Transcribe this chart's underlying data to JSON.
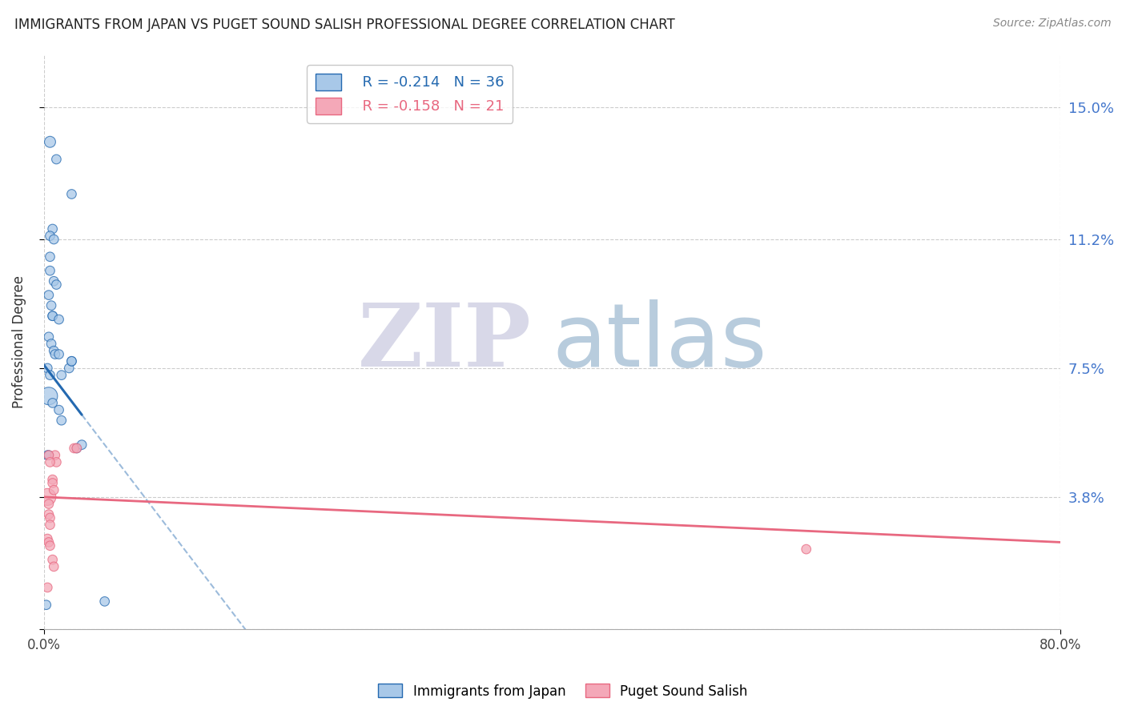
{
  "title": "IMMIGRANTS FROM JAPAN VS PUGET SOUND SALISH PROFESSIONAL DEGREE CORRELATION CHART",
  "source": "Source: ZipAtlas.com",
  "ylabel": "Professional Degree",
  "xlim": [
    0,
    0.8
  ],
  "ylim": [
    0,
    0.165
  ],
  "yticks": [
    0.0,
    0.038,
    0.075,
    0.112,
    0.15
  ],
  "ytick_labels": [
    "",
    "3.8%",
    "7.5%",
    "11.2%",
    "15.0%"
  ],
  "legend_r": [
    -0.214,
    -0.158
  ],
  "legend_n": [
    36,
    21
  ],
  "blue_color": "#a8c8e8",
  "pink_color": "#f4a8b8",
  "blue_line_color": "#2469b0",
  "pink_line_color": "#e86880",
  "blue_scatter": {
    "x": [
      0.005,
      0.01,
      0.022,
      0.007,
      0.005,
      0.008,
      0.005,
      0.005,
      0.008,
      0.01,
      0.004,
      0.006,
      0.007,
      0.007,
      0.012,
      0.004,
      0.006,
      0.008,
      0.009,
      0.012,
      0.003,
      0.005,
      0.014,
      0.02,
      0.022,
      0.022,
      0.004,
      0.007,
      0.012,
      0.014,
      0.003,
      0.004,
      0.026,
      0.03,
      0.048,
      0.002
    ],
    "y": [
      0.14,
      0.135,
      0.125,
      0.115,
      0.113,
      0.112,
      0.107,
      0.103,
      0.1,
      0.099,
      0.096,
      0.093,
      0.09,
      0.09,
      0.089,
      0.084,
      0.082,
      0.08,
      0.079,
      0.079,
      0.075,
      0.073,
      0.073,
      0.075,
      0.077,
      0.077,
      0.067,
      0.065,
      0.063,
      0.06,
      0.05,
      0.05,
      0.052,
      0.053,
      0.008,
      0.007
    ],
    "sizes": [
      100,
      70,
      70,
      70,
      70,
      70,
      70,
      70,
      70,
      70,
      70,
      70,
      70,
      70,
      70,
      70,
      70,
      70,
      70,
      70,
      70,
      70,
      70,
      70,
      70,
      70,
      250,
      70,
      70,
      70,
      70,
      70,
      70,
      70,
      70,
      70
    ]
  },
  "pink_scatter": {
    "x": [
      0.003,
      0.004,
      0.004,
      0.005,
      0.005,
      0.007,
      0.007,
      0.008,
      0.009,
      0.01,
      0.003,
      0.004,
      0.005,
      0.007,
      0.008,
      0.004,
      0.005,
      0.024,
      0.026,
      0.6,
      0.003
    ],
    "y": [
      0.038,
      0.036,
      0.033,
      0.032,
      0.03,
      0.043,
      0.042,
      0.04,
      0.05,
      0.048,
      0.026,
      0.025,
      0.024,
      0.02,
      0.018,
      0.05,
      0.048,
      0.052,
      0.052,
      0.023,
      0.012
    ],
    "sizes": [
      230,
      70,
      70,
      70,
      70,
      70,
      70,
      70,
      70,
      70,
      70,
      70,
      70,
      70,
      70,
      70,
      70,
      70,
      70,
      70,
      70
    ]
  },
  "blue_line": {
    "x0": 0.0,
    "y0": 0.076,
    "x1": 0.048,
    "y1": 0.053,
    "solid_end": 0.03,
    "dash_end": 0.6
  },
  "pink_line": {
    "x0": 0.0,
    "y0": 0.038,
    "x1": 0.8,
    "y1": 0.025,
    "solid_end": 0.8
  },
  "background_color": "#ffffff",
  "grid_color": "#cccccc",
  "watermark_zip": "ZIP",
  "watermark_atlas": "atlas",
  "watermark_color_zip": "#d8d8e8",
  "watermark_color_atlas": "#b8ccdd"
}
